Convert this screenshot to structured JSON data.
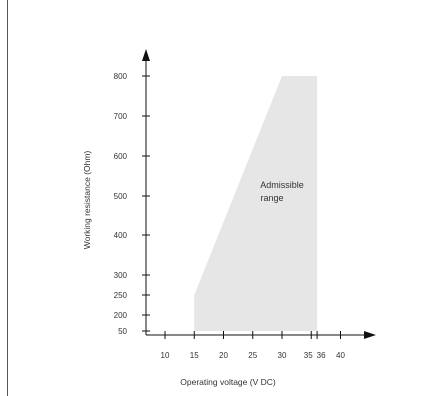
{
  "chart_data": {
    "type": "area",
    "title": "",
    "xlabel": "Operating voltage  (V DC)",
    "ylabel": "Working resistance  (Ohm)",
    "x_ticks": [
      10,
      15,
      20,
      25,
      30,
      35,
      36,
      40
    ],
    "x_tick_labels": [
      "10",
      "15",
      "20",
      "25",
      "30",
      "35",
      "36",
      "40"
    ],
    "y_ticks": [
      50,
      200,
      250,
      300,
      400,
      500,
      600,
      700,
      800
    ],
    "y_tick_labels": [
      "50",
      "200",
      "250",
      "300",
      "400",
      "500",
      "600",
      "700",
      "800"
    ],
    "region": {
      "label_line1": "Admissible",
      "label_line2": "range",
      "polygon": [
        {
          "x": 15,
          "y": 50
        },
        {
          "x": 15,
          "y": 250
        },
        {
          "x": 30,
          "y": 800
        },
        {
          "x": 36,
          "y": 800
        },
        {
          "x": 36,
          "y": 50
        }
      ],
      "color": "#e6e6e6"
    },
    "axis_color": "#111111",
    "grid": false,
    "legend": "none"
  }
}
